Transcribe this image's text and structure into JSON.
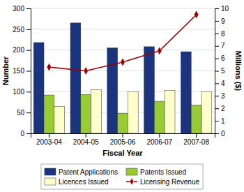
{
  "chart_data": {
    "type": "bar",
    "categories": [
      "2003-04",
      "2004-05",
      "2005-06",
      "2006-07",
      "2007-08"
    ],
    "series": [
      {
        "name": "Patent Applications",
        "color": "#1A3480",
        "values": [
          218,
          265,
          205,
          208,
          196
        ]
      },
      {
        "name": "Patents Issued",
        "color": "#99CC33",
        "values": [
          92,
          93,
          48,
          77,
          68
        ]
      },
      {
        "name": "Licences Issued",
        "color": "#FFFFCC",
        "values": [
          65,
          105,
          100,
          103,
          100
        ]
      },
      {
        "name": "Licensing Revenue",
        "type": "line",
        "axis": "y2",
        "color": "#990000",
        "marker": "diamond",
        "values": [
          5.3,
          5.0,
          5.7,
          6.6,
          9.5
        ]
      }
    ],
    "xlabel": "Fiscal Year",
    "ylabel": "Number",
    "y2label": "Millions ($)",
    "ylim": [
      0,
      300
    ],
    "yticks": [
      0,
      50,
      100,
      150,
      200,
      250,
      300
    ],
    "y2lim": [
      0.0,
      10.0
    ],
    "y2ticks": [
      0,
      1,
      2,
      3,
      4,
      5,
      6,
      7,
      8,
      9,
      10
    ],
    "grid": true,
    "legend": "bottom"
  }
}
